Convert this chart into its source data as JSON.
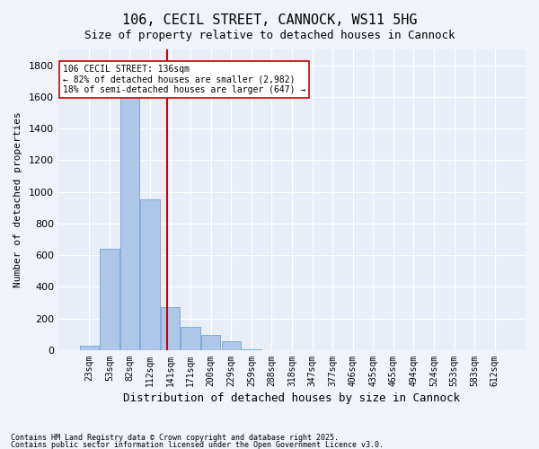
{
  "title_line1": "106, CECIL STREET, CANNOCK, WS11 5HG",
  "title_line2": "Size of property relative to detached houses in Cannock",
  "xlabel": "Distribution of detached houses by size in Cannock",
  "ylabel": "Number of detached properties",
  "footer_line1": "Contains HM Land Registry data © Crown copyright and database right 2025.",
  "footer_line2": "Contains public sector information licensed under the Open Government Licence v3.0.",
  "annotation_line1": "106 CECIL STREET: 136sqm",
  "annotation_line2": "← 82% of detached houses are smaller (2,982)",
  "annotation_line3": "18% of semi-detached houses are larger (647) →",
  "bar_color": "#aec6e8",
  "bar_edge_color": "#5b9bd5",
  "redline_color": "#cc0000",
  "background_color": "#e8eef7",
  "grid_color": "#ffffff",
  "categories": [
    "23sqm",
    "53sqm",
    "82sqm",
    "112sqm",
    "141sqm",
    "171sqm",
    "200sqm",
    "229sqm",
    "259sqm",
    "288sqm",
    "318sqm",
    "347sqm",
    "377sqm",
    "406sqm",
    "435sqm",
    "465sqm",
    "494sqm",
    "524sqm",
    "553sqm",
    "583sqm",
    "612sqm"
  ],
  "values": [
    30,
    640,
    1680,
    950,
    270,
    150,
    95,
    55,
    5,
    0,
    0,
    0,
    0,
    0,
    0,
    0,
    0,
    0,
    0,
    0,
    0
  ],
  "redline_x": 3.85,
  "ylim": [
    0,
    1900
  ],
  "yticks": [
    0,
    200,
    400,
    600,
    800,
    1000,
    1200,
    1400,
    1600,
    1800
  ]
}
